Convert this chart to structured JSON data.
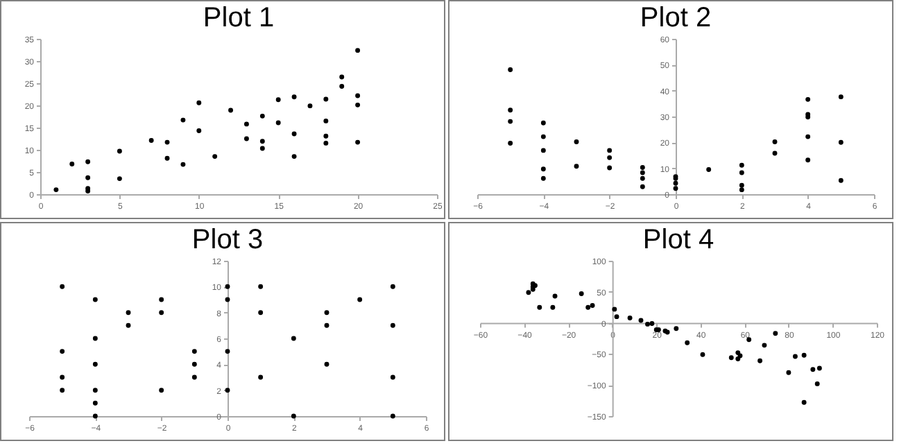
{
  "chart_data": [
    {
      "type": "scatter",
      "title": "Plot 1",
      "marker": "circle",
      "grid": false,
      "x": [
        1,
        2,
        3,
        3,
        3,
        3,
        5,
        5,
        7,
        8,
        8,
        9,
        9,
        10,
        10,
        11,
        12,
        13,
        13,
        14,
        14,
        14,
        15,
        15,
        16,
        16,
        16,
        17,
        18,
        18,
        18,
        18,
        19,
        19,
        20,
        20,
        20,
        20
      ],
      "series": [
        {
          "color": "#000000",
          "values": [
            1,
            6.8,
            7.3,
            3.7,
            1.3,
            0.7,
            9.7,
            3.5,
            12.1,
            11.7,
            8.1,
            16.7,
            6.7,
            20.6,
            14.3,
            8.5,
            18.9,
            15.8,
            12.5,
            17.6,
            11.9,
            10.3,
            21.3,
            16.1,
            21.9,
            13.6,
            8.5,
            19.9,
            21.4,
            16.5,
            13.1,
            11.5,
            26.4,
            24.3,
            32.4,
            22.2,
            20.1,
            11.7
          ]
        }
      ],
      "xlim": [
        0,
        25
      ],
      "xticks": [
        0,
        5,
        10,
        15,
        20,
        25
      ],
      "ylim": [
        0,
        35
      ],
      "yticks": [
        0,
        5,
        10,
        15,
        20,
        25,
        30,
        35
      ]
    },
    {
      "type": "scatter",
      "title": "Plot 2",
      "marker": "circle",
      "grid": false,
      "x": [
        -5,
        -5,
        -5,
        -5,
        -4,
        -4,
        -4,
        -4,
        -4,
        -3,
        -3,
        -2,
        -2,
        -2,
        -1,
        -1,
        -1,
        -1,
        0,
        0,
        0,
        0,
        1,
        2,
        2,
        2,
        2,
        3,
        3,
        4,
        4,
        4,
        4,
        4,
        5,
        5,
        5
      ],
      "series": [
        {
          "color": "#000000",
          "values": [
            48.1,
            32.5,
            28.1,
            19.7,
            27.5,
            22.2,
            16.9,
            9.7,
            6.1,
            20.2,
            10.8,
            16.9,
            14.1,
            10.2,
            10.3,
            8.3,
            6.1,
            2.9,
            6.8,
            6.1,
            4.2,
            2.2,
            9.5,
            11.2,
            8.3,
            3.4,
            1.7,
            20.2,
            15.8,
            36.6,
            30.8,
            29.8,
            22.2,
            13.2,
            37.6,
            20,
            5.3
          ]
        }
      ],
      "xlim": [
        -6,
        6
      ],
      "xticks": [
        -6,
        -4,
        -2,
        0,
        2,
        4,
        6
      ],
      "ylim": [
        0,
        60
      ],
      "yticks": [
        0,
        10,
        20,
        30,
        40,
        50,
        60
      ]
    },
    {
      "type": "scatter",
      "title": "Plot 3",
      "marker": "circle",
      "grid": false,
      "x": [
        -5,
        -5,
        -5,
        -5,
        -4,
        -4,
        -4,
        -4,
        -4,
        -4,
        -3,
        -3,
        -2,
        -2,
        -2,
        -1,
        -1,
        -1,
        0,
        0,
        0,
        0,
        1,
        1,
        1,
        2,
        2,
        3,
        3,
        3,
        4,
        5,
        5,
        5,
        5
      ],
      "series": [
        {
          "color": "#000000",
          "values": [
            10,
            5,
            3,
            2,
            9,
            6,
            4,
            2,
            1,
            0,
            8,
            7,
            9,
            8,
            2,
            5,
            4,
            3,
            10,
            9,
            5,
            2,
            10,
            8,
            3,
            6,
            0,
            8,
            7,
            4,
            9,
            10,
            7,
            3,
            0
          ]
        }
      ],
      "xlim": [
        -6,
        6
      ],
      "xticks": [
        -6,
        -4,
        -2,
        0,
        2,
        4,
        6
      ],
      "ylim": [
        0,
        12
      ],
      "yticks": [
        0,
        2,
        4,
        6,
        8,
        10,
        12
      ]
    },
    {
      "type": "scatter",
      "title": "Plot 4",
      "marker": "circle",
      "grid": false,
      "x": [
        -38,
        -36,
        -35,
        -36,
        -36,
        -33,
        -27,
        -26,
        -14,
        -11,
        -9,
        1,
        2,
        8,
        13,
        16,
        18,
        20,
        21,
        24,
        25,
        29,
        34,
        41,
        54,
        57,
        57,
        58,
        62,
        67,
        69,
        74,
        80,
        83,
        87,
        87,
        91,
        93,
        94
      ],
      "series": [
        {
          "color": "#000000",
          "values": [
            49,
            63,
            60,
            58,
            54,
            25,
            25,
            43,
            47,
            25,
            28,
            22,
            10,
            8,
            4,
            -2,
            -1,
            -11,
            -11,
            -13,
            -15,
            -9,
            -32,
            -51,
            -56,
            -48,
            -58,
            -53,
            -27,
            -61,
            -36,
            -17,
            -80,
            -54,
            -52,
            -128,
            -75,
            -98,
            -73
          ]
        }
      ],
      "xlim": [
        -60,
        120
      ],
      "xticks": [
        -60,
        -40,
        -20,
        0,
        20,
        40,
        60,
        80,
        100,
        120
      ],
      "ylim": [
        -150,
        100
      ],
      "yticks": [
        -150,
        -100,
        -50,
        0,
        50,
        100
      ]
    }
  ]
}
